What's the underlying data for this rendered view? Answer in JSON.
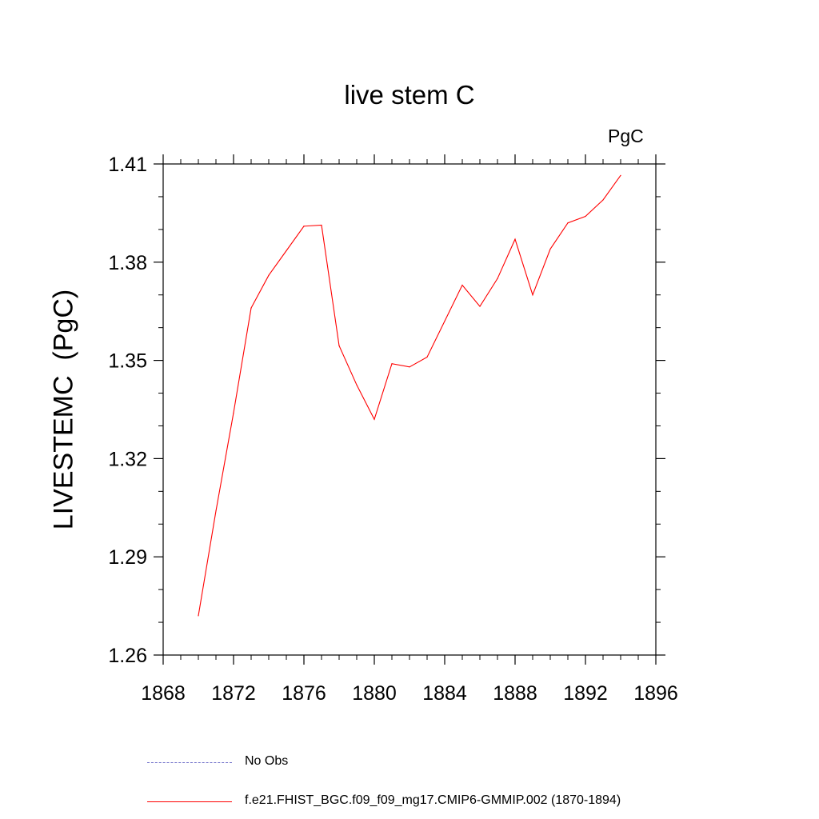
{
  "chart_data": {
    "type": "line",
    "title": "live stem C",
    "units": "PgC",
    "ylabel": "LIVESTEMC  (PgC)",
    "xlim": [
      1868,
      1896
    ],
    "ylim": [
      1.26,
      1.41
    ],
    "xticks": [
      1868,
      1872,
      1876,
      1880,
      1884,
      1888,
      1892,
      1896
    ],
    "yticks": [
      1.26,
      1.29,
      1.32,
      1.35,
      1.38,
      1.41
    ],
    "ytick_labels": [
      "1.26",
      "1.29",
      "1.32",
      "1.35",
      "1.38",
      "1.41"
    ],
    "series": [
      {
        "name": "f.e21.FHIST_BGC.f09_f09_mg17.CMIP6-GMMIP.002 (1870-1894)",
        "color": "#ff0000",
        "style": "solid",
        "x": [
          1870,
          1871,
          1872,
          1873,
          1874,
          1875,
          1876,
          1877,
          1878,
          1879,
          1880,
          1881,
          1882,
          1883,
          1884,
          1885,
          1886,
          1887,
          1888,
          1889,
          1890,
          1891,
          1892,
          1893,
          1894
        ],
        "y": [
          1.272,
          1.304,
          1.334,
          1.366,
          1.376,
          1.3835,
          1.391,
          1.3913,
          1.3545,
          1.3425,
          1.332,
          1.349,
          1.348,
          1.351,
          1.362,
          1.373,
          1.3665,
          1.375,
          1.387,
          1.37,
          1.384,
          1.392,
          1.394,
          1.399,
          1.4065
        ]
      }
    ],
    "legend": [
      {
        "label": "No Obs",
        "color": "#7777cc",
        "style": "dashed"
      },
      {
        "label": "f.e21.FHIST_BGC.f09_f09_mg17.CMIP6-GMMIP.002 (1870-1894)",
        "color": "#ff0000",
        "style": "solid"
      }
    ],
    "legend_placement": "bottom",
    "grid": false
  }
}
